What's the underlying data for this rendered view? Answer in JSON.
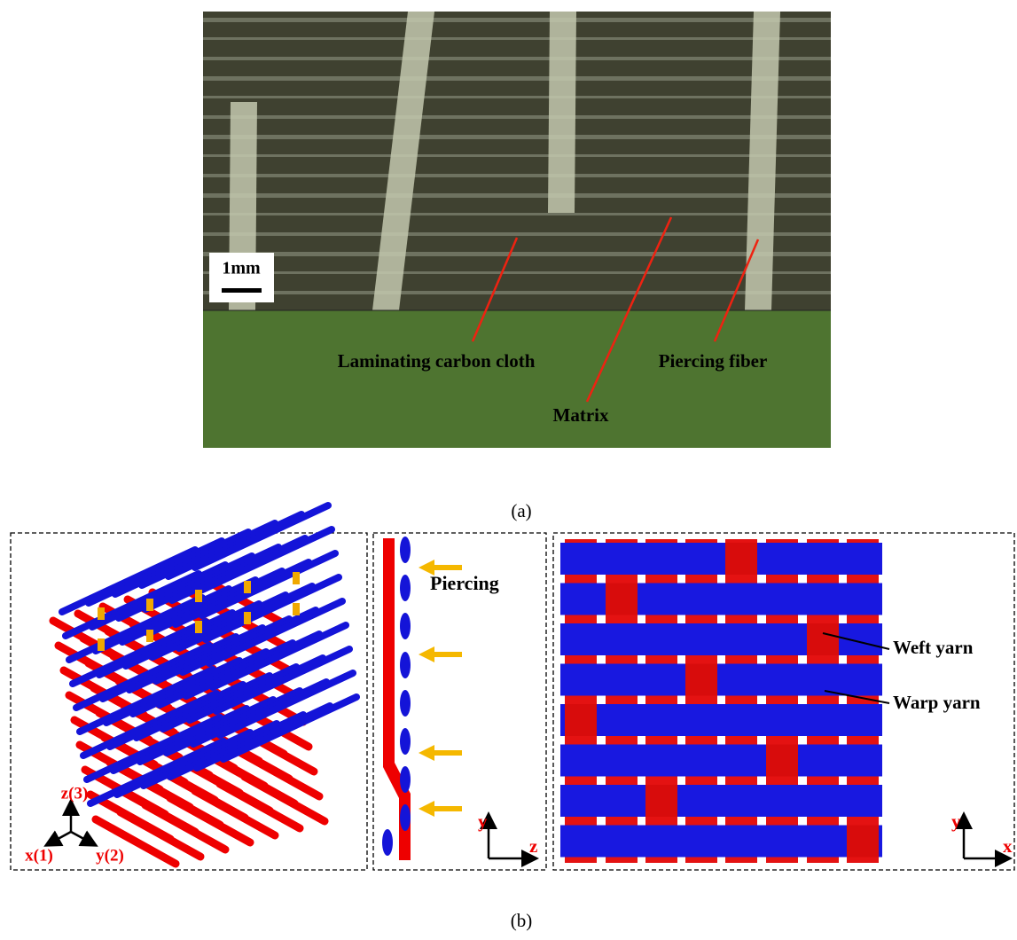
{
  "panel_a": {
    "scale_bar": "1mm",
    "labels": [
      "Laminating carbon cloth",
      "Piercing fiber",
      "Matrix"
    ],
    "caption": "(a)"
  },
  "panel_b": {
    "axes_3d": [
      "z(3)",
      "x(1)",
      "y(2)"
    ],
    "piercing_label": "Piercing",
    "side_axes": [
      "y",
      "z"
    ],
    "weave_labels": [
      "Weft yarn",
      "Warp yarn"
    ],
    "top_axes": [
      "y",
      "x"
    ],
    "caption": "(b)"
  }
}
